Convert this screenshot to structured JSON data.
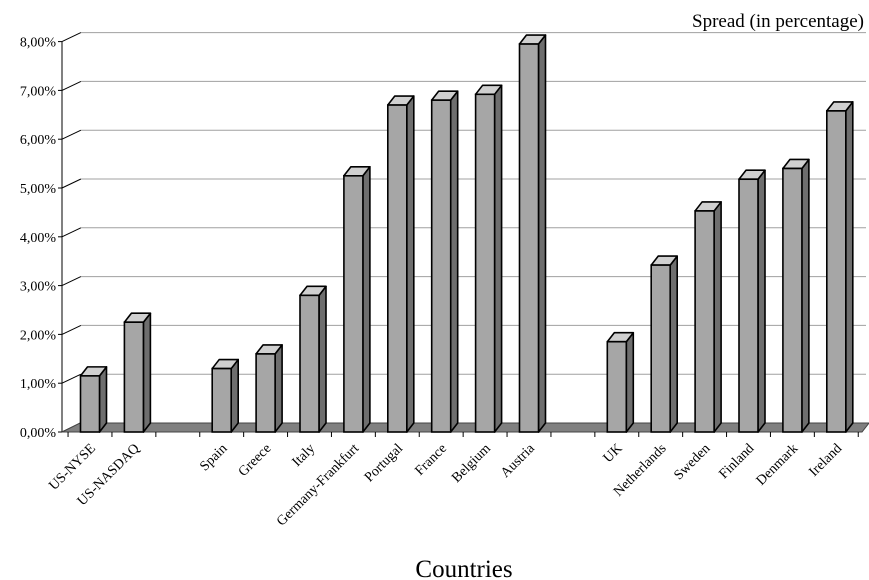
{
  "chart_data": {
    "type": "bar",
    "title": "",
    "unit_label": "Spread (in percentage)",
    "xlabel": "Countries",
    "ylabel": "",
    "ylim": [
      0,
      8
    ],
    "yticks": [
      "0,00%",
      "1,00%",
      "2,00%",
      "3,00%",
      "4,00%",
      "5,00%",
      "6,00%",
      "7,00%",
      "8,00%"
    ],
    "grid": true,
    "categories": [
      "US-NYSE",
      "US-NASDAQ",
      "",
      "Spain",
      "Greece",
      "Italy",
      "Germany-Frankfurt",
      "Portugal",
      "France",
      "Belgium",
      "Austria",
      "",
      "UK",
      "Netherlands",
      "Sweden",
      "Finland",
      "Denmark",
      "Ireland"
    ],
    "values": [
      1.15,
      2.25,
      null,
      1.3,
      1.6,
      2.8,
      5.25,
      6.7,
      6.8,
      6.92,
      7.95,
      null,
      1.85,
      3.42,
      4.53,
      5.18,
      5.4,
      6.58
    ],
    "colors": {
      "bar_face": "#a6a6a6",
      "bar_top": "#d0d0d0",
      "bar_side": "#6e6e6e",
      "outline": "#000000",
      "floor": "#808080",
      "grid": "#a0a0a0"
    }
  }
}
